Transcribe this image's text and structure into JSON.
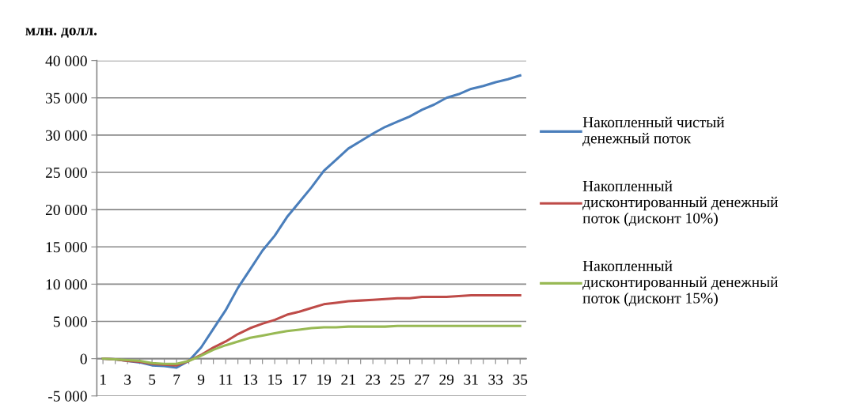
{
  "chart_data": {
    "type": "line",
    "ylabel": "млн. долл.",
    "categories": [
      "1",
      null,
      "3",
      null,
      "5",
      null,
      "7",
      null,
      "9",
      null,
      "11",
      null,
      "13",
      null,
      "15",
      null,
      "17",
      null,
      "19",
      null,
      "21",
      null,
      "23",
      null,
      "25",
      null,
      "27",
      null,
      "29",
      null,
      "31",
      null,
      "33",
      null,
      "35"
    ],
    "series": [
      {
        "name": "Накопленный чистый денежный поток",
        "color": "#4a7ebb",
        "values": [
          0,
          -100,
          -300,
          -500,
          -900,
          -1000,
          -1200,
          -300,
          1500,
          4000,
          6500,
          9500,
          12000,
          14500,
          16500,
          19000,
          21000,
          23000,
          25200,
          26700,
          28200,
          29200,
          30200,
          31100,
          31800,
          32500,
          33400,
          34100,
          35000,
          35500,
          36200,
          36600,
          37100,
          37500,
          38000
        ]
      },
      {
        "name": "Накопленный дисконтированный денежный поток (дисконт 10%)",
        "color": "#be4b48",
        "values": [
          0,
          -100,
          -300,
          -400,
          -700,
          -800,
          -900,
          -300,
          500,
          1500,
          2300,
          3300,
          4100,
          4700,
          5200,
          5900,
          6300,
          6800,
          7300,
          7500,
          7700,
          7800,
          7900,
          8000,
          8100,
          8100,
          8300,
          8300,
          8300,
          8400,
          8500,
          8500,
          8500,
          8500,
          8500
        ]
      },
      {
        "name": "Накопленный дисконтированный денежный поток (дисконт 15%)",
        "color": "#98b954",
        "values": [
          0,
          -100,
          -200,
          -300,
          -600,
          -700,
          -700,
          -300,
          400,
          1200,
          1800,
          2300,
          2800,
          3100,
          3400,
          3700,
          3900,
          4100,
          4200,
          4200,
          4300,
          4300,
          4300,
          4300,
          4400,
          4400,
          4400,
          4400,
          4400,
          4400,
          4400,
          4400,
          4400,
          4400,
          4400
        ]
      }
    ],
    "ylim": [
      -5000,
      40000
    ],
    "yticks": [
      {
        "value": -5000,
        "label": "-5 000"
      },
      0,
      {
        "value": 5000,
        "label": "5 000"
      },
      {
        "value": 10000,
        "label": "10 000"
      },
      {
        "value": 15000,
        "label": "15 000"
      },
      {
        "value": 20000,
        "label": "20 000"
      },
      {
        "value": 25000,
        "label": "25 000"
      },
      {
        "value": 30000,
        "label": "30 000"
      },
      {
        "value": 35000,
        "label": "35 000"
      },
      {
        "value": 40000,
        "label": "40 000"
      }
    ],
    "grid": "y",
    "legend": "right",
    "marker": "none",
    "line_style": "solid"
  }
}
